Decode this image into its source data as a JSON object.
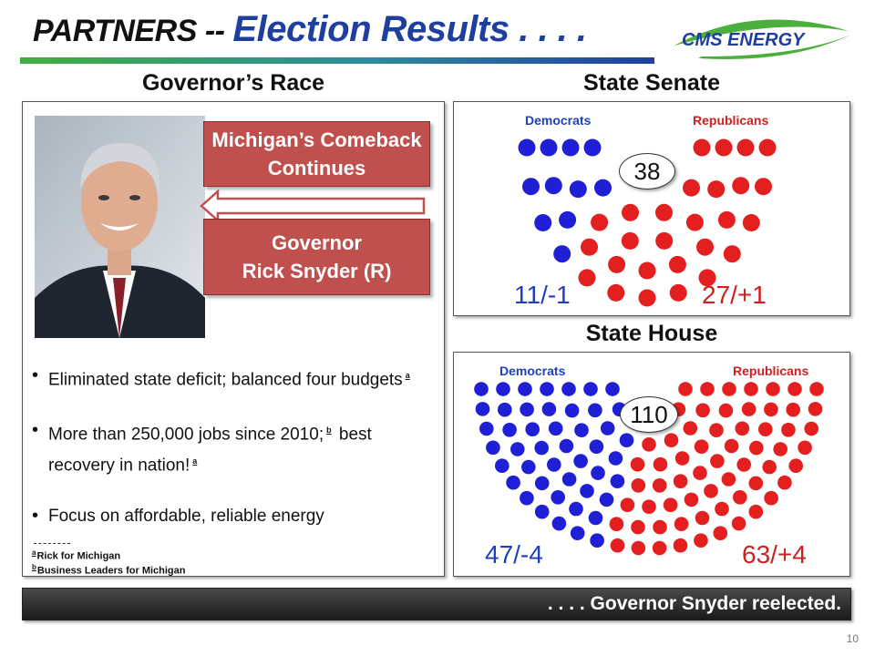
{
  "header": {
    "title_prefix": "PARTNERS -- ",
    "title_main": "Election Results . . . .",
    "logo_text": "CMS ENERGY"
  },
  "governor": {
    "section_title": "Governor’s Race",
    "comeback_line1": "Michigan’s Comeback",
    "comeback_line2": "Continues",
    "name_line1": "Governor",
    "name_line2": "Rick Snyder (R)",
    "bullets": [
      {
        "text": "Eliminated state deficit; balanced four budgets",
        "sup": "a"
      },
      {
        "text_before": "More than 250,000 jobs since 2010;",
        "sup1": "b",
        "text_after": " best recovery in nation!",
        "sup2": "a"
      },
      {
        "text": "Focus on affordable, reliable energy"
      }
    ],
    "footnotes": [
      {
        "mark": "a",
        "text": "Rick for Michigan"
      },
      {
        "mark": "b",
        "text": "Business Leaders for Michigan"
      }
    ]
  },
  "senate": {
    "section_title": "State Senate",
    "dem_label": "Democrats",
    "rep_label": "Republicans",
    "total": "38",
    "dem_tally": "11/-1",
    "rep_tally": "27/+1",
    "dem_seats": 11,
    "rep_seats": 27
  },
  "house": {
    "section_title": "State House",
    "dem_label": "Democrats",
    "rep_label": "Republicans",
    "total": "110",
    "dem_tally": "47/-4",
    "rep_tally": "63/+4",
    "dem_seats": 47,
    "rep_seats": 63
  },
  "colors": {
    "democrat": "#1f1fd6",
    "republican": "#e41f1f",
    "accent_box": "#c0504d"
  },
  "banner": {
    "text": ". . . . Governor Snyder reelected."
  },
  "page_number": "10"
}
